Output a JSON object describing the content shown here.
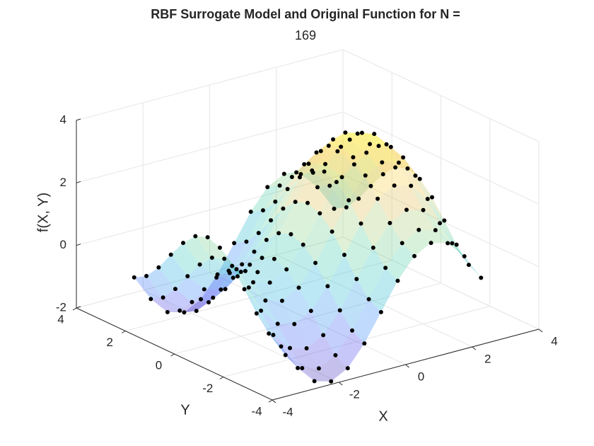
{
  "chart_data": {
    "type": "surface3d",
    "title": [
      "RBF Surrogate Model and Original Function for N =",
      "169"
    ],
    "xlabel": "X",
    "ylabel": "Y",
    "zlabel": "f(X, Y)",
    "x": [
      -3,
      -2.5,
      -2,
      -1.5,
      -1,
      -0.5,
      0,
      0.5,
      1,
      1.5,
      2,
      2.5,
      3
    ],
    "y": [
      -3,
      -2.5,
      -2,
      -1.5,
      -1,
      -0.5,
      0,
      0.5,
      1,
      1.5,
      2,
      2.5,
      3
    ],
    "z": [
      [
        -0.94,
        -1.77,
        -2.33,
        -2.48,
        -2.2,
        -1.55,
        -0.69,
        0.17,
        0.82,
        1.1,
        0.95,
        0.39,
        -0.44
      ],
      [
        -0.71,
        -1.54,
        -2.1,
        -2.25,
        -1.97,
        -1.32,
        -0.46,
        0.4,
        1.05,
        1.33,
        1.18,
        0.62,
        -0.21
      ],
      [
        -0.25,
        -1.08,
        -1.64,
        -1.79,
        -1.51,
        -0.86,
        0,
        0.86,
        1.51,
        1.79,
        1.64,
        1.08,
        0.25
      ],
      [
        0.34,
        -0.49,
        -1.05,
        -1.2,
        -0.92,
        -0.27,
        0.59,
        1.45,
        2.1,
        2.38,
        2.23,
        1.67,
        0.84
      ],
      [
        0.9,
        0.07,
        -0.49,
        -0.64,
        -0.36,
        0.29,
        1.15,
        2.01,
        2.66,
        2.94,
        2.79,
        2.23,
        1.4
      ],
      [
        1.3,
        0.47,
        -0.09,
        -0.24,
        0.04,
        0.69,
        1.55,
        2.41,
        3.06,
        3.34,
        3.19,
        2.63,
        1.8
      ],
      [
        1.45,
        0.62,
        0.06,
        -0.09,
        0.19,
        0.84,
        1.7,
        2.56,
        3.21,
        3.49,
        3.34,
        2.78,
        1.95
      ],
      [
        1.3,
        0.47,
        -0.09,
        -0.24,
        0.04,
        0.69,
        1.55,
        2.41,
        3.06,
        3.34,
        3.19,
        2.63,
        1.8
      ],
      [
        0.9,
        0.07,
        -0.49,
        -0.64,
        -0.36,
        0.29,
        1.15,
        2.01,
        2.66,
        2.94,
        2.79,
        2.23,
        1.4
      ],
      [
        0.34,
        -0.49,
        -1.05,
        -1.2,
        -0.92,
        -0.27,
        0.59,
        1.45,
        2.1,
        2.38,
        2.23,
        1.67,
        0.84
      ],
      [
        -0.25,
        -1.08,
        -1.64,
        -1.79,
        -1.51,
        -0.86,
        0,
        0.86,
        1.51,
        1.79,
        1.64,
        1.08,
        0.25
      ],
      [
        -0.71,
        -1.54,
        -2.1,
        -2.25,
        -1.97,
        -1.32,
        -0.46,
        0.4,
        1.05,
        1.33,
        1.18,
        0.62,
        -0.21
      ],
      [
        -0.94,
        -1.77,
        -2.33,
        -2.48,
        -2.2,
        -1.55,
        -0.69,
        0.17,
        0.82,
        1.1,
        0.95,
        0.39,
        -0.44
      ]
    ],
    "xlim": [
      -4,
      4
    ],
    "ylim": [
      -4,
      4
    ],
    "zlim": [
      -2,
      4
    ],
    "xticks": [
      -4,
      -2,
      0,
      2,
      4
    ],
    "yticks": [
      -4,
      -2,
      0,
      2,
      4
    ],
    "zticks": [
      -2,
      0,
      2,
      4
    ],
    "grid": true,
    "point_color": "#000000",
    "surface_alpha": 0.3,
    "colormap": [
      "#3e26a8",
      "#4748f0",
      "#2e87f7",
      "#1fb4d7",
      "#3dcbab",
      "#92d07f",
      "#e0bb4a",
      "#fdd338",
      "#f9fb0e"
    ]
  }
}
